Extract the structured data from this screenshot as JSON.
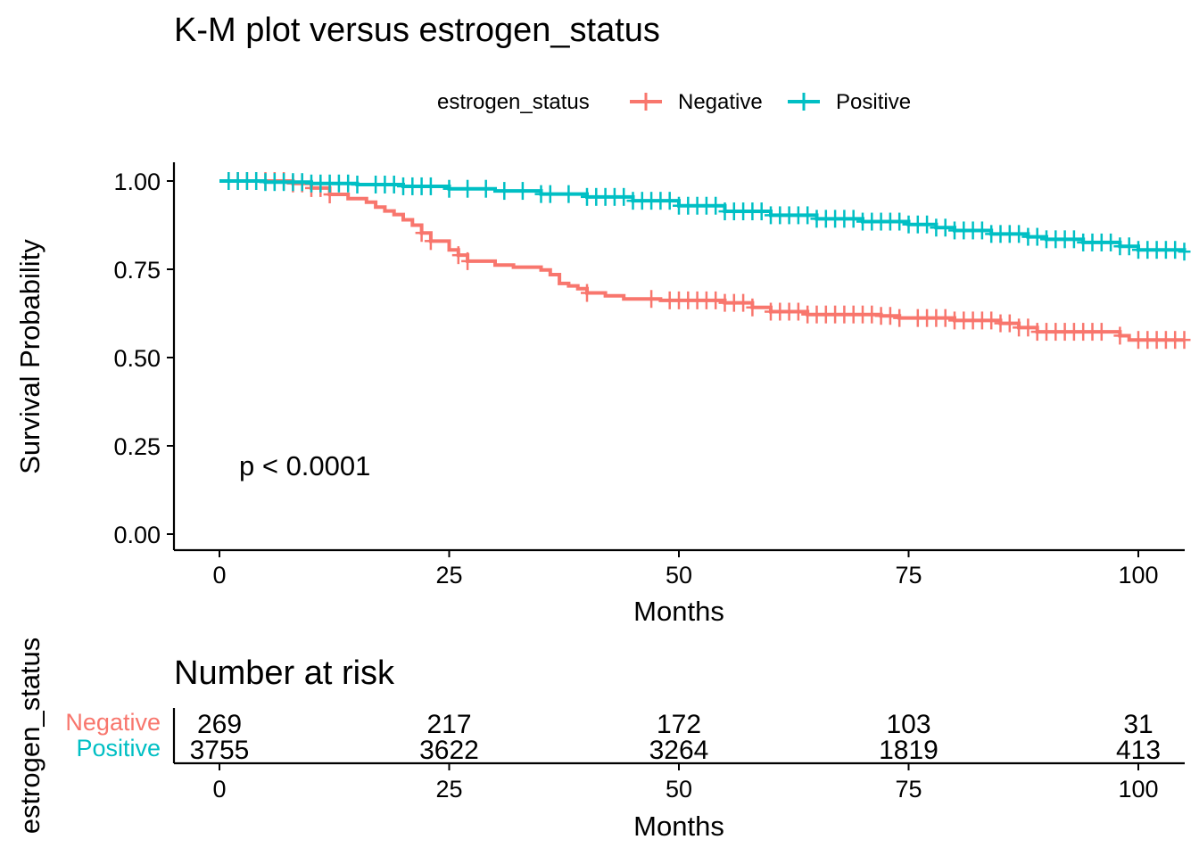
{
  "chart_data": [
    {
      "type": "line",
      "title": "K-M plot versus estrogen_status",
      "xlabel": "Months",
      "ylabel": "Survival Probability",
      "xlim": [
        0,
        105
      ],
      "ylim": [
        0,
        1.05
      ],
      "x_ticks": [
        "0",
        "25",
        "50",
        "75",
        "100"
      ],
      "y_ticks": [
        "0.00",
        "0.25",
        "0.50",
        "0.75",
        "1.00"
      ],
      "legend": {
        "title": "estrogen_status",
        "placement": "top",
        "entries": [
          "Negative",
          "Positive"
        ]
      },
      "annotation": "p < 0.0001",
      "grid": false,
      "series": [
        {
          "name": "Negative",
          "color": "#F8766D",
          "step_points": [
            [
              0,
              1.0
            ],
            [
              8,
              0.993
            ],
            [
              10,
              0.98
            ],
            [
              12,
              0.962
            ],
            [
              14,
              0.95
            ],
            [
              16,
              0.94
            ],
            [
              17,
              0.926
            ],
            [
              18,
              0.915
            ],
            [
              19,
              0.905
            ],
            [
              20,
              0.89
            ],
            [
              21,
              0.875
            ],
            [
              22,
              0.853
            ],
            [
              23,
              0.83
            ],
            [
              25,
              0.805
            ],
            [
              26,
              0.79
            ],
            [
              27,
              0.773
            ],
            [
              30,
              0.762
            ],
            [
              32,
              0.756
            ],
            [
              35,
              0.748
            ],
            [
              36,
              0.735
            ],
            [
              37,
              0.71
            ],
            [
              38,
              0.703
            ],
            [
              39,
              0.695
            ],
            [
              40,
              0.683
            ],
            [
              42,
              0.675
            ],
            [
              44,
              0.666
            ],
            [
              48,
              0.662
            ],
            [
              55,
              0.655
            ],
            [
              58,
              0.642
            ],
            [
              60,
              0.63
            ],
            [
              64,
              0.622
            ],
            [
              72,
              0.618
            ],
            [
              74,
              0.612
            ],
            [
              80,
              0.605
            ],
            [
              85,
              0.597
            ],
            [
              87,
              0.585
            ],
            [
              89,
              0.573
            ],
            [
              98,
              0.562
            ],
            [
              99,
              0.55
            ],
            [
              105,
              0.55
            ]
          ],
          "censor_x": [
            1,
            2,
            3,
            4,
            5,
            6,
            7,
            8,
            9,
            10,
            11,
            12,
            22,
            23,
            26,
            27,
            40,
            47,
            49,
            50,
            51,
            52,
            53,
            54,
            55,
            56,
            57,
            58,
            60,
            61,
            62,
            63,
            64,
            65,
            66,
            67,
            68,
            69,
            70,
            71,
            72,
            73,
            74,
            76,
            77,
            78,
            79,
            80,
            81,
            82,
            83,
            84,
            85,
            86,
            87,
            88,
            89,
            90,
            91,
            92,
            93,
            94,
            95,
            96,
            98,
            100,
            101,
            102,
            103,
            104,
            105
          ]
        },
        {
          "name": "Positive",
          "color": "#00BFC4",
          "step_points": [
            [
              0,
              1.0
            ],
            [
              5,
              0.997
            ],
            [
              10,
              0.993
            ],
            [
              15,
              0.99
            ],
            [
              20,
              0.985
            ],
            [
              25,
              0.978
            ],
            [
              30,
              0.972
            ],
            [
              35,
              0.963
            ],
            [
              40,
              0.955
            ],
            [
              45,
              0.944
            ],
            [
              50,
              0.93
            ],
            [
              55,
              0.914
            ],
            [
              60,
              0.903
            ],
            [
              65,
              0.893
            ],
            [
              70,
              0.885
            ],
            [
              75,
              0.877
            ],
            [
              78,
              0.868
            ],
            [
              80,
              0.86
            ],
            [
              84,
              0.85
            ],
            [
              88,
              0.842
            ],
            [
              90,
              0.835
            ],
            [
              94,
              0.826
            ],
            [
              98,
              0.815
            ],
            [
              100,
              0.805
            ],
            [
              105,
              0.8
            ]
          ],
          "censor_x": [
            1,
            2,
            3,
            4,
            5,
            6,
            7,
            8,
            9,
            10,
            11,
            12,
            13,
            14,
            15,
            17,
            18,
            19,
            20,
            21,
            22,
            23,
            25,
            27,
            29,
            31,
            33,
            35,
            36,
            38,
            40,
            41,
            42,
            43,
            44,
            45,
            46,
            47,
            48,
            49,
            50,
            51,
            52,
            53,
            54,
            55,
            56,
            57,
            58,
            59,
            60,
            61,
            62,
            63,
            64,
            65,
            66,
            67,
            68,
            69,
            70,
            71,
            72,
            73,
            74,
            75,
            76,
            77,
            78,
            79,
            80,
            81,
            82,
            83,
            84,
            85,
            86,
            87,
            88,
            89,
            90,
            91,
            92,
            93,
            94,
            95,
            96,
            97,
            98,
            99,
            100,
            101,
            102,
            103,
            104,
            105
          ]
        }
      ]
    },
    {
      "type": "table",
      "title": "Number at risk",
      "xlabel": "Months",
      "ylabel": "estrogen_status",
      "xlim": [
        0,
        105
      ],
      "x_ticks": [
        "0",
        "25",
        "50",
        "75",
        "100"
      ],
      "x": [
        0,
        25,
        50,
        75,
        100
      ],
      "rows": [
        {
          "name": "Negative",
          "color": "#F8766D",
          "values": [
            "269",
            "217",
            "172",
            "103",
            "31"
          ]
        },
        {
          "name": "Positive",
          "color": "#00BFC4",
          "values": [
            "3755",
            "3622",
            "3264",
            "1819",
            "413"
          ]
        }
      ]
    }
  ]
}
